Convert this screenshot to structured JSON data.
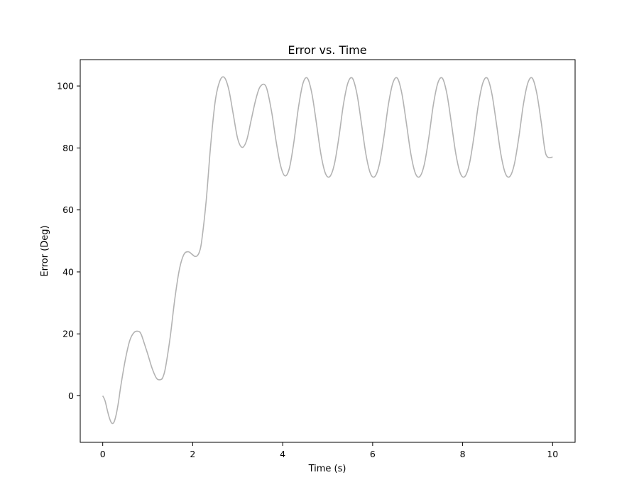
{
  "chart_data": {
    "type": "line",
    "title": "Error vs. Time",
    "xlabel": "Time (s)",
    "ylabel": "Error (Deg)",
    "xlim": [
      -0.5,
      10.5
    ],
    "ylim": [
      -15,
      108.5
    ],
    "xticks": [
      0,
      2,
      4,
      6,
      8,
      10
    ],
    "xtick_labels": [
      "0",
      "2",
      "4",
      "6",
      "8",
      "10"
    ],
    "yticks": [
      0,
      20,
      40,
      60,
      80,
      100
    ],
    "ytick_labels": [
      "0",
      "20",
      "40",
      "60",
      "80",
      "100"
    ],
    "grid": false,
    "legend": "none",
    "series_color": "#b3b3b3",
    "series": [
      {
        "x": [
          0,
          0.05,
          0.1,
          0.15,
          0.2,
          0.25,
          0.3,
          0.35,
          0.4,
          0.5,
          0.6,
          0.7,
          0.8,
          0.85,
          0.9,
          1.0,
          1.1,
          1.2,
          1.3,
          1.35,
          1.4,
          1.5,
          1.6,
          1.7,
          1.8,
          1.9,
          2.0,
          2.05,
          2.1,
          2.15,
          2.2,
          2.3,
          2.4,
          2.5,
          2.6,
          2.7,
          2.8,
          2.9,
          3.0,
          3.1,
          3.2,
          3.3,
          3.4,
          3.5,
          3.63,
          3.75,
          3.85,
          3.95,
          4.05,
          4.15,
          4.25,
          4.35,
          4.45,
          4.55,
          4.65,
          4.75,
          4.85,
          4.95,
          5.05,
          5.15,
          5.25,
          5.35,
          5.45,
          5.55,
          5.65,
          5.75,
          5.85,
          5.95,
          6.05,
          6.15,
          6.25,
          6.35,
          6.45,
          6.55,
          6.65,
          6.75,
          6.85,
          6.95,
          7.05,
          7.15,
          7.25,
          7.35,
          7.45,
          7.55,
          7.65,
          7.75,
          7.85,
          7.95,
          8.05,
          8.15,
          8.25,
          8.35,
          8.45,
          8.55,
          8.65,
          8.75,
          8.85,
          8.95,
          9.05,
          9.15,
          9.25,
          9.35,
          9.45,
          9.55,
          9.65,
          9.75,
          9.85,
          10.0
        ],
        "y": [
          0,
          -1.5,
          -4.5,
          -7.2,
          -8.8,
          -8.5,
          -6.0,
          -2.0,
          3.0,
          11.5,
          17.8,
          20.5,
          20.8,
          20.0,
          18.0,
          13.5,
          8.8,
          5.6,
          5.3,
          6.5,
          9.5,
          19.0,
          31.0,
          40.5,
          45.5,
          46.5,
          45.5,
          45.0,
          45.2,
          46.5,
          50.0,
          63.0,
          81.0,
          95.0,
          101.5,
          102.8,
          99.0,
          91.0,
          83.0,
          80.2,
          82.5,
          89.0,
          95.5,
          99.8,
          99.8,
          92.0,
          82.5,
          74.5,
          71.0,
          73.5,
          82.0,
          93.0,
          100.8,
          102.5,
          97.5,
          88.0,
          78.0,
          71.8,
          70.8,
          74.8,
          83.5,
          94.0,
          101.0,
          102.5,
          97.5,
          88.0,
          78.0,
          71.8,
          70.8,
          74.8,
          83.5,
          94.0,
          101.0,
          102.5,
          97.5,
          88.0,
          78.0,
          71.8,
          70.8,
          74.8,
          83.5,
          94.0,
          101.0,
          102.5,
          97.5,
          88.0,
          78.0,
          71.8,
          70.8,
          74.8,
          83.5,
          94.0,
          101.0,
          102.5,
          97.5,
          88.0,
          78.0,
          71.8,
          70.8,
          74.8,
          83.5,
          94.0,
          101.0,
          102.5,
          97.5,
          88.0,
          78.0,
          77.0
        ]
      }
    ]
  }
}
